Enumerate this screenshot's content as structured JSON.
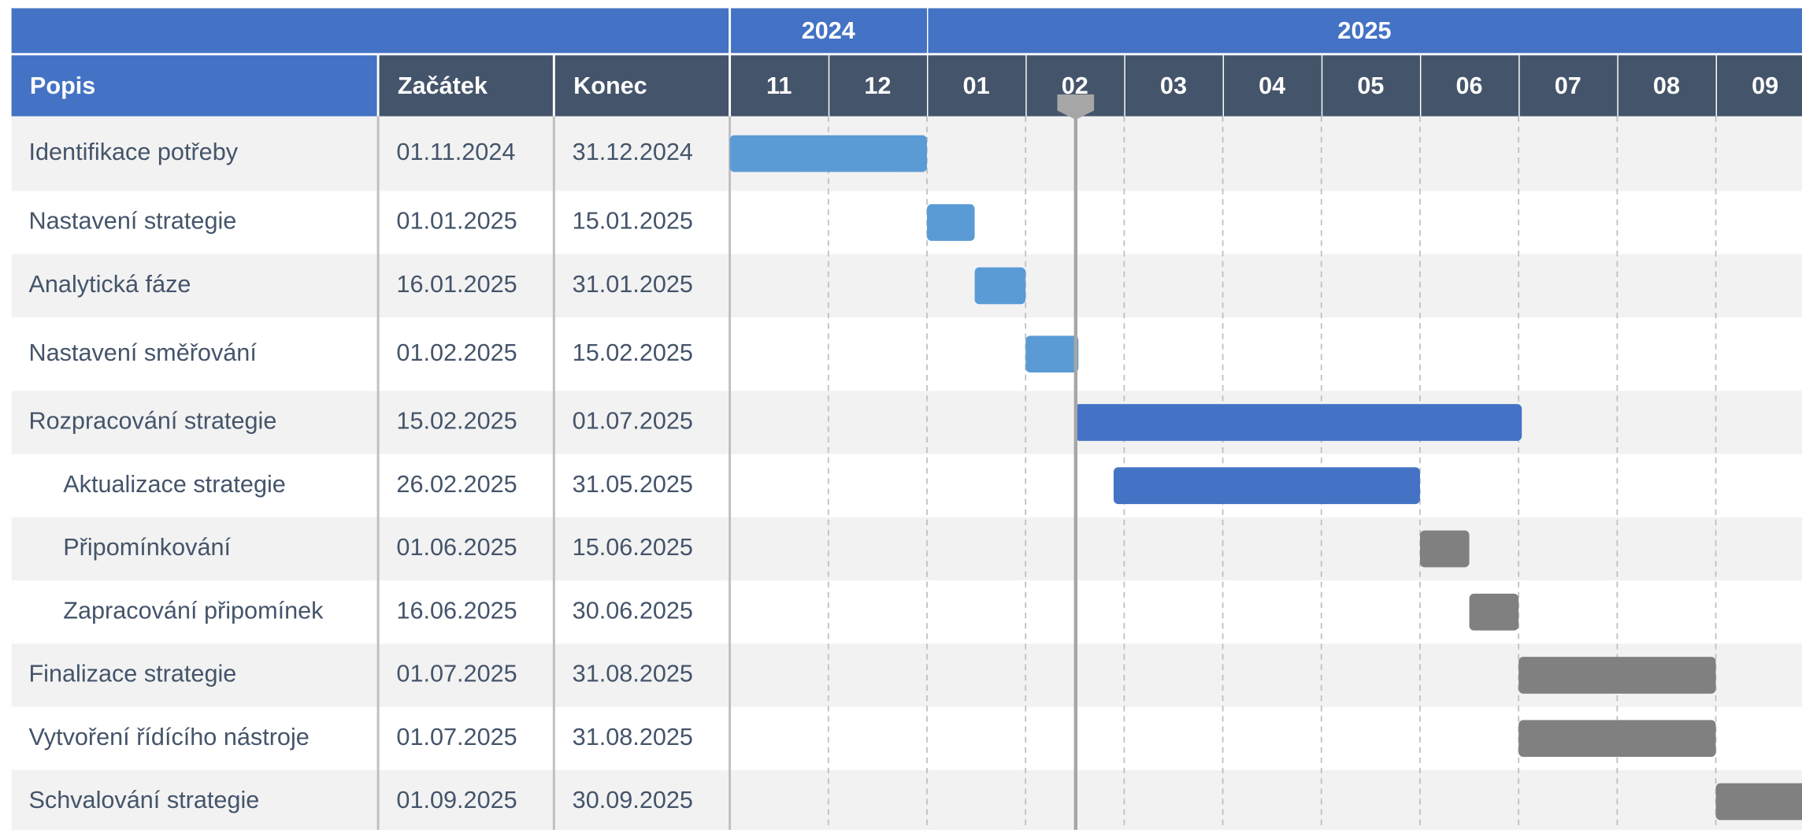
{
  "chart_data": {
    "type": "gantt",
    "columns": [
      "Popis",
      "Začátek",
      "Konec"
    ],
    "years": [
      {
        "label": "2024",
        "months": [
          "11",
          "12"
        ]
      },
      {
        "label": "2025",
        "months": [
          "01",
          "02",
          "03",
          "04",
          "05",
          "06",
          "07",
          "08",
          "09"
        ]
      }
    ],
    "tasks": [
      {
        "name": "Identifikace potřeby",
        "start": "01.11.2024",
        "end": "31.12.2024",
        "level": 0,
        "color": "#5b9bd5"
      },
      {
        "name": "Nastavení strategie",
        "start": "01.01.2025",
        "end": "15.01.2025",
        "level": 0,
        "color": "#5b9bd5"
      },
      {
        "name": "Analytická fáze",
        "start": "16.01.2025",
        "end": "31.01.2025",
        "level": 0,
        "color": "#5b9bd5"
      },
      {
        "name": "Nastavení směřování",
        "start": "01.02.2025",
        "end": "15.02.2025",
        "level": 0,
        "color": "#5b9bd5"
      },
      {
        "name": "Rozpracování strategie",
        "start": "15.02.2025",
        "end": "01.07.2025",
        "level": 0,
        "color": "#4472c4"
      },
      {
        "name": "Aktualizace strategie",
        "start": "26.02.2025",
        "end": "31.05.2025",
        "level": 1,
        "color": "#4472c4"
      },
      {
        "name": "Připomínkování",
        "start": "01.06.2025",
        "end": "15.06.2025",
        "level": 1,
        "color": "#808080"
      },
      {
        "name": "Zapracování připomínek",
        "start": "16.06.2025",
        "end": "30.06.2025",
        "level": 1,
        "color": "#808080"
      },
      {
        "name": "Finalizace strategie",
        "start": "01.07.2025",
        "end": "31.08.2025",
        "level": 0,
        "color": "#808080"
      },
      {
        "name": "Vytvoření řídícího nástroje",
        "start": "01.07.2025",
        "end": "31.08.2025",
        "level": 0,
        "color": "#808080"
      },
      {
        "name": "Schvalování strategie",
        "start": "01.09.2025",
        "end": "30.09.2025",
        "level": 0,
        "color": "#808080"
      }
    ]
  }
}
